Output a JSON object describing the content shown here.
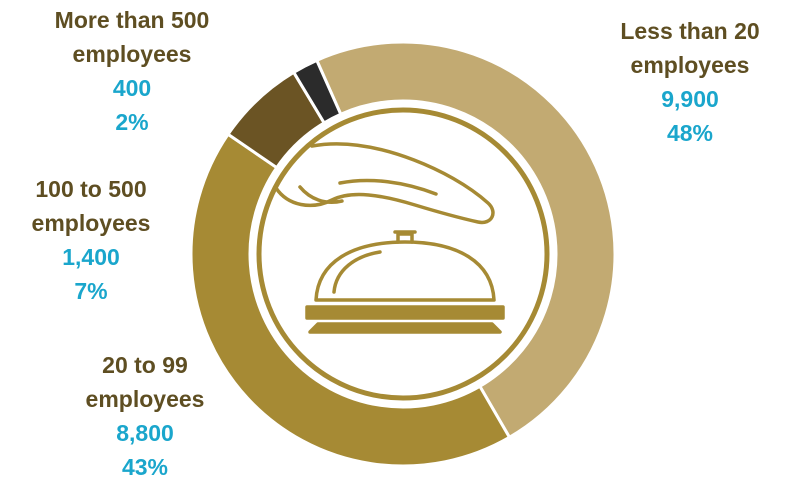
{
  "chart_data": {
    "type": "pie",
    "variant": "donut",
    "slices": [
      {
        "label_line1": "Less than 20",
        "label_line2": "employees",
        "value_text": "9,900",
        "percent_text": "48%",
        "value": 9900,
        "percent": 48,
        "color": "#c2aa72"
      },
      {
        "label_line1": "20 to 99",
        "label_line2": "employees",
        "value_text": "8,800",
        "percent_text": "43%",
        "value": 8800,
        "percent": 43,
        "color": "#a68a34"
      },
      {
        "label_line1": "100 to 500",
        "label_line2": "employees",
        "value_text": "1,400",
        "percent_text": "7%",
        "value": 1400,
        "percent": 7,
        "color": "#6b5424"
      },
      {
        "label_line1": "More than 500",
        "label_line2": "employees",
        "value_text": "400",
        "percent_text": "2%",
        "value": 400,
        "percent": 2,
        "color": "#2b2b2b"
      }
    ],
    "center_icon": "hand-over-service-bell-icon",
    "label_color": "#5e4e22",
    "value_color": "#1aa6cc"
  }
}
